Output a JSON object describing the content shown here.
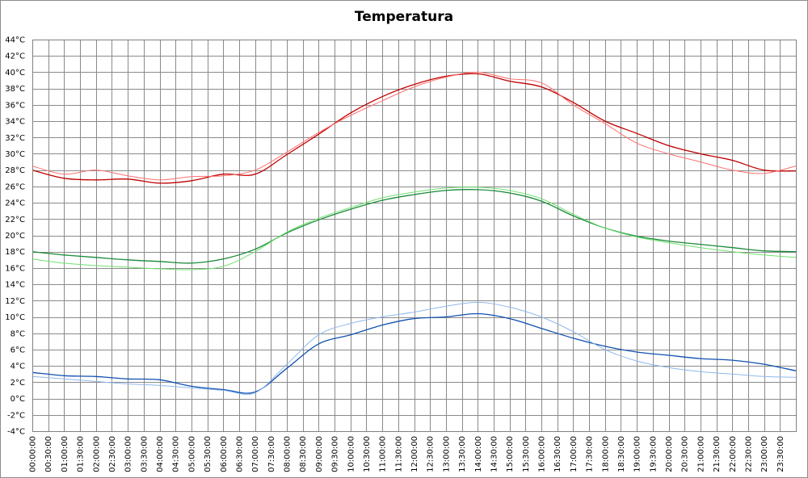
{
  "chart_data": {
    "type": "line",
    "title": "Temperatura",
    "y_tick_labels": [
      "-4°C",
      "-2°C",
      "0°C",
      "2°C",
      "4°C",
      "6°C",
      "8°C",
      "10°C",
      "12°C",
      "14°C",
      "16°C",
      "18°C",
      "20°C",
      "22°C",
      "24°C",
      "26°C",
      "28°C",
      "30°C",
      "32°C",
      "34°C",
      "36°C",
      "38°C",
      "40°C",
      "42°C",
      "44°C"
    ],
    "ylim": [
      -4,
      44
    ],
    "x_tick_labels": [
      "00:00:00",
      "00:30:00",
      "01:00:00",
      "01:30:00",
      "02:00:00",
      "02:30:00",
      "03:00:00",
      "03:30:00",
      "04:00:00",
      "04:30:00",
      "05:00:00",
      "05:30:00",
      "06:00:00",
      "06:30:00",
      "07:00:00",
      "07:30:00",
      "08:00:00",
      "08:30:00",
      "09:00:00",
      "09:30:00",
      "10:00:00",
      "10:30:00",
      "11:00:00",
      "11:30:00",
      "12:00:00",
      "12:30:00",
      "13:00:00",
      "13:30:00",
      "14:00:00",
      "14:30:00",
      "15:00:00",
      "15:30:00",
      "16:00:00",
      "16:30:00",
      "17:00:00",
      "17:30:00",
      "18:00:00",
      "18:30:00",
      "19:00:00",
      "19:30:00",
      "20:00:00",
      "20:30:00",
      "21:00:00",
      "21:30:00",
      "22:00:00",
      "22:30:00",
      "23:00:00",
      "23:30:00"
    ],
    "x_hours": [
      0,
      1,
      2,
      3,
      4,
      5,
      6,
      7,
      8,
      9,
      10,
      11,
      12,
      13,
      14,
      15,
      16,
      17,
      18,
      19,
      20,
      21,
      22,
      23,
      24
    ],
    "xlim": [
      0,
      24
    ],
    "grid": true,
    "legend": "none",
    "series": [
      {
        "color": "#c00000",
        "width": 1.3,
        "values": [
          28.0,
          27.0,
          26.8,
          26.9,
          26.4,
          26.7,
          27.5,
          27.5,
          29.9,
          32.4,
          35.0,
          37.0,
          38.5,
          39.5,
          39.8,
          38.9,
          38.2,
          36.3,
          34.0,
          32.5,
          31.0,
          30.0,
          29.2,
          28.0,
          27.9
        ]
      },
      {
        "color": "#ff7070",
        "width": 1.0,
        "values": [
          28.5,
          27.5,
          28.0,
          27.3,
          26.8,
          27.2,
          27.3,
          28.0,
          30.2,
          32.6,
          34.7,
          36.5,
          38.2,
          39.4,
          40.0,
          39.2,
          38.7,
          36.0,
          33.7,
          31.3,
          30.0,
          29.0,
          28.0,
          27.6,
          28.5
        ]
      },
      {
        "color": "#1a8a3a",
        "width": 1.3,
        "values": [
          18.0,
          17.6,
          17.3,
          17.0,
          16.8,
          16.6,
          17.1,
          18.3,
          20.3,
          21.9,
          23.2,
          24.3,
          25.0,
          25.5,
          25.6,
          25.2,
          24.2,
          22.4,
          20.9,
          19.9,
          19.3,
          18.9,
          18.5,
          18.1,
          18.0
        ]
      },
      {
        "color": "#70e070",
        "width": 1.0,
        "values": [
          17.1,
          16.6,
          16.3,
          16.1,
          15.9,
          15.8,
          16.2,
          18.0,
          20.4,
          22.1,
          23.4,
          24.6,
          25.3,
          25.8,
          25.9,
          25.5,
          24.5,
          22.6,
          20.9,
          19.8,
          19.1,
          18.5,
          18.0,
          17.6,
          17.3
        ]
      },
      {
        "color": "#1050b0",
        "width": 1.3,
        "values": [
          3.2,
          2.8,
          2.7,
          2.4,
          2.3,
          1.5,
          1.1,
          0.8,
          3.7,
          6.7,
          7.8,
          9.0,
          9.8,
          10.0,
          10.4,
          9.8,
          8.6,
          7.4,
          6.4,
          5.7,
          5.3,
          4.9,
          4.7,
          4.2,
          3.4
        ]
      },
      {
        "color": "#8fb8ec",
        "width": 1.0,
        "values": [
          2.7,
          2.4,
          2.1,
          1.8,
          1.6,
          1.3,
          1.0,
          0.7,
          4.2,
          7.8,
          9.2,
          10.0,
          10.6,
          11.3,
          11.8,
          11.2,
          10.0,
          8.2,
          6.0,
          4.6,
          3.8,
          3.3,
          3.0,
          2.7,
          2.6
        ]
      }
    ]
  }
}
